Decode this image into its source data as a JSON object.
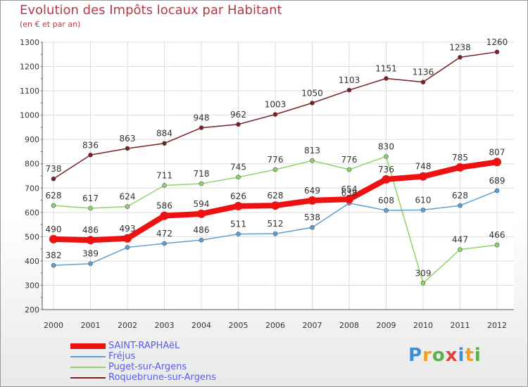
{
  "title": "Evolution des Impôts locaux par Habitant",
  "subtitle": "(en € et par an)",
  "logo": {
    "text": "Proxiti",
    "colors": [
      "#3a8fd6",
      "#f0a020",
      "#5ab04a",
      "#e04040",
      "#3a8fd6",
      "#f0a020",
      "#5ab04a"
    ]
  },
  "chart_data": {
    "type": "line",
    "title": "Evolution des Impôts locaux par Habitant",
    "subtitle": "(en € et par an)",
    "xlabel": "",
    "ylabel": "",
    "x": [
      "2000",
      "2001",
      "2002",
      "2003",
      "2004",
      "2005",
      "2006",
      "2007",
      "2008",
      "2009",
      "2010",
      "2011",
      "2012"
    ],
    "ylim": [
      200,
      1300
    ],
    "yticks": [
      200,
      300,
      400,
      500,
      600,
      700,
      800,
      900,
      1000,
      1100,
      1200,
      1300
    ],
    "grid": true,
    "legend_position": "bottom-left",
    "series": [
      {
        "name": "SAINT-RAPHAëL",
        "color": "#ee1111",
        "values": [
          490,
          486,
          493,
          586,
          594,
          626,
          628,
          649,
          654,
          736,
          748,
          785,
          807
        ]
      },
      {
        "name": "Fréjus",
        "color": "#5d9fd3",
        "values": [
          382,
          389,
          456,
          472,
          486,
          511,
          512,
          538,
          638,
          608,
          610,
          628,
          689
        ]
      },
      {
        "name": "Puget-sur-Argens",
        "color": "#8fd46a",
        "values": [
          628,
          617,
          624,
          711,
          718,
          745,
          776,
          813,
          776,
          830,
          309,
          447,
          466
        ]
      },
      {
        "name": "Roquebrune-sur-Argens",
        "color": "#7a1f24",
        "values": [
          738,
          836,
          863,
          884,
          948,
          962,
          1003,
          1050,
          1103,
          1151,
          1136,
          1238,
          1260
        ]
      }
    ],
    "data_labels": [
      [
        "490",
        "486",
        "493",
        "586",
        "594",
        "626",
        "628",
        "649",
        "654",
        "736",
        "748",
        "785",
        "807"
      ],
      [
        "382",
        "389",
        "",
        "472",
        "486",
        "511",
        "512",
        "538",
        "638",
        "608",
        "610",
        "628",
        "689"
      ],
      [
        "628",
        "617",
        "624",
        "711",
        "718",
        "745",
        "776",
        "813",
        "776",
        "830",
        "309",
        "447",
        "466"
      ],
      [
        "738",
        "836",
        "863",
        "884",
        "948",
        "962",
        "1003",
        "1050",
        "1103",
        "1151",
        "1136",
        "1238",
        "1260"
      ]
    ]
  }
}
